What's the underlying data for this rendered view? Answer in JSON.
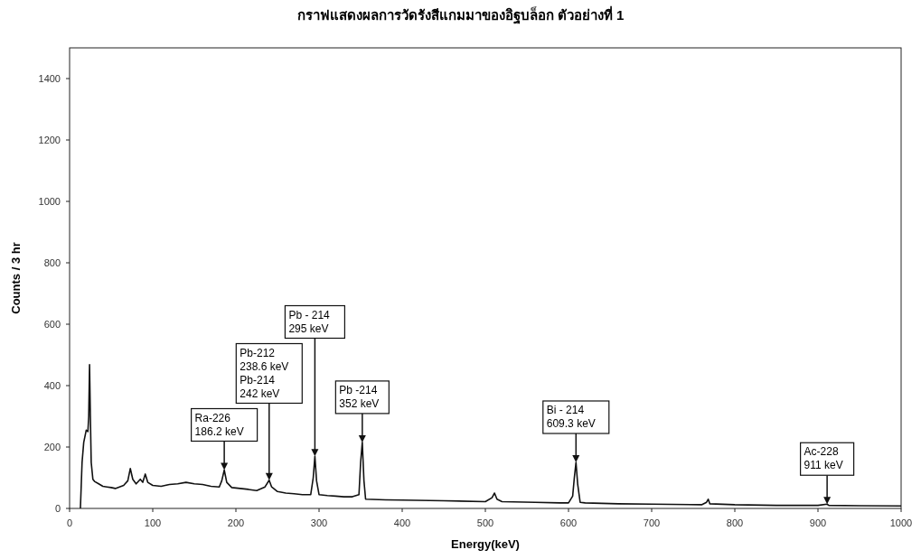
{
  "chart_data": {
    "type": "line",
    "title": "กราฟแสดงผลการวัดรังสีแกมมาของอิฐบล็อก ตัวอย่างที่ 1",
    "xlabel": "Energy(keV)",
    "ylabel": "Counts / 3 hr",
    "xlim": [
      0,
      1000
    ],
    "ylim": [
      0,
      1500
    ],
    "xticks": [
      0,
      100,
      200,
      300,
      400,
      500,
      600,
      700,
      800,
      900,
      1000
    ],
    "yticks": [
      0,
      200,
      400,
      600,
      800,
      1000,
      1200,
      1400
    ],
    "grid": false,
    "series": [
      {
        "color": "#111111",
        "x": [
          13,
          15,
          17,
          20,
          22,
          23,
          24,
          25,
          26,
          28,
          30,
          35,
          40,
          45,
          50,
          55,
          60,
          65,
          70,
          73,
          76,
          80,
          85,
          88,
          91,
          94,
          100,
          110,
          120,
          130,
          140,
          150,
          160,
          170,
          180,
          183,
          186,
          189,
          195,
          205,
          215,
          225,
          235,
          240,
          243,
          250,
          260,
          270,
          280,
          290,
          293,
          295,
          297,
          300,
          310,
          320,
          330,
          340,
          348,
          350,
          352,
          354,
          356,
          380,
          400,
          450,
          500,
          508,
          511,
          514,
          520,
          560,
          590,
          600,
          605,
          607,
          609,
          611,
          614,
          620,
          660,
          700,
          760,
          766,
          768,
          770,
          800,
          850,
          900,
          911,
          913,
          950,
          1000
        ],
        "values": [
          0,
          150,
          215,
          255,
          250,
          300,
          468,
          300,
          150,
          95,
          88,
          80,
          72,
          70,
          68,
          65,
          70,
          75,
          90,
          130,
          95,
          80,
          95,
          85,
          112,
          85,
          75,
          72,
          78,
          80,
          85,
          80,
          78,
          72,
          70,
          90,
          125,
          85,
          68,
          65,
          62,
          58,
          70,
          92,
          70,
          55,
          50,
          48,
          45,
          45,
          100,
          170,
          90,
          45,
          42,
          40,
          38,
          38,
          45,
          150,
          215,
          90,
          30,
          28,
          27,
          25,
          22,
          35,
          50,
          30,
          22,
          20,
          18,
          18,
          40,
          100,
          150,
          80,
          20,
          18,
          15,
          14,
          12,
          20,
          30,
          15,
          12,
          10,
          10,
          14,
          10,
          9,
          8
        ]
      }
    ],
    "annotations": [
      {
        "text": "Ra-226\n186.2 keV",
        "x": 186,
        "y": 125
      },
      {
        "text": "Pb-212\n238.6 keV\nPb-214\n242 keV",
        "x": 240,
        "y": 92
      },
      {
        "text": "Pb - 214\n295 keV",
        "x": 295,
        "y": 170
      },
      {
        "text": "Pb -214\n352 keV",
        "x": 352,
        "y": 215
      },
      {
        "text": "Bi - 214\n609.3 keV",
        "x": 609,
        "y": 150
      },
      {
        "text": "Ac-228\n911 keV",
        "x": 911,
        "y": 14
      }
    ]
  }
}
